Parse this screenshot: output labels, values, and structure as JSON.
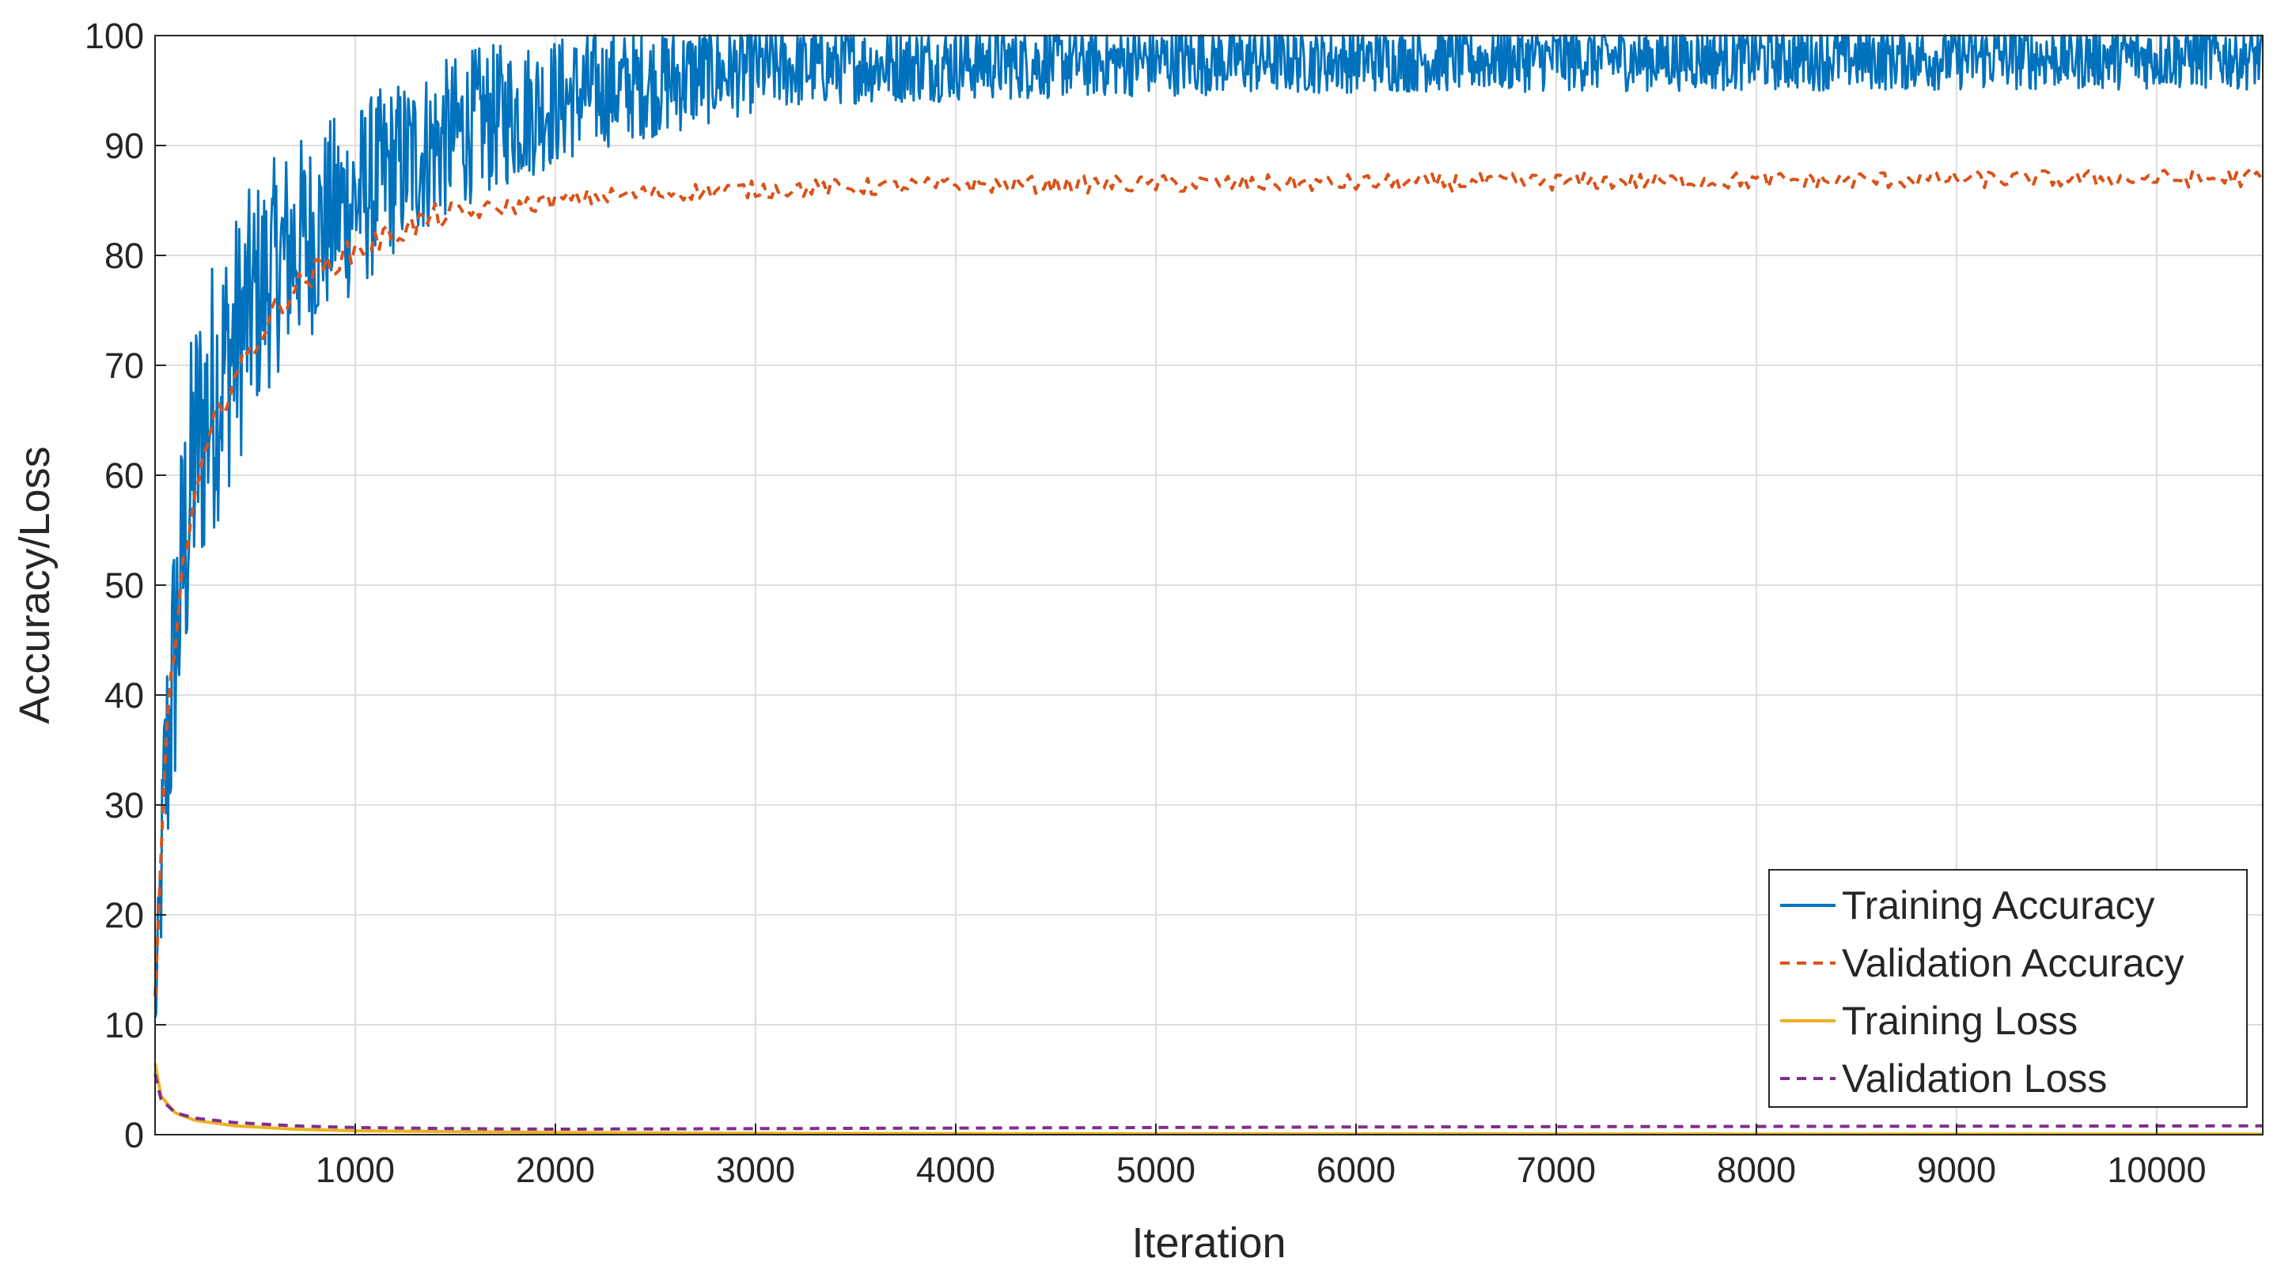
{
  "chart_data": {
    "type": "line",
    "title": "",
    "xlabel": "Iteration",
    "ylabel": "Accuracy/Loss",
    "xlim": [
      0,
      10530
    ],
    "ylim": [
      0,
      100
    ],
    "xticks": [
      1000,
      2000,
      3000,
      4000,
      5000,
      6000,
      7000,
      8000,
      9000,
      10000
    ],
    "yticks": [
      0,
      10,
      20,
      30,
      40,
      50,
      60,
      70,
      80,
      90,
      100
    ],
    "grid": true,
    "legend_position": "bottom-right",
    "series": [
      {
        "name": "Training Accuracy",
        "color": "#0072BD",
        "style": "solid",
        "x": [
          0,
          50,
          100,
          150,
          200,
          300,
          400,
          500,
          600,
          700,
          800,
          900,
          1000,
          1200,
          1400,
          1600,
          1800,
          2000,
          2200,
          2400,
          2600,
          2800,
          3000,
          3500,
          4000,
          5000,
          6000,
          7000,
          8000,
          9000,
          10000,
          10530
        ],
        "values": [
          10,
          32,
          44,
          54,
          62,
          68,
          72,
          76,
          79,
          81,
          82,
          84,
          85,
          88,
          90,
          92,
          93,
          94,
          95,
          95.5,
          96,
          96.5,
          97,
          97.3,
          97.5,
          97.7,
          97.8,
          97.9,
          98,
          98,
          98.1,
          98.1
        ],
        "noise_band": [
          2,
          12,
          14,
          14,
          14,
          13,
          12,
          11,
          10,
          10,
          9,
          9,
          9,
          8,
          7.5,
          7,
          6.5,
          6,
          5.5,
          5,
          5,
          4.5,
          4,
          3.5,
          3.5,
          3.2,
          3,
          3,
          3,
          3,
          3,
          3
        ]
      },
      {
        "name": "Validation Accuracy",
        "color": "#D95319",
        "style": "dashed",
        "x": [
          0,
          30,
          60,
          100,
          150,
          200,
          300,
          400,
          500,
          600,
          700,
          800,
          900,
          1000,
          1200,
          1400,
          1600,
          1800,
          2000,
          2200,
          2500,
          3000,
          3500,
          4000,
          5000,
          6000,
          7000,
          8000,
          9000,
          10000,
          10530
        ],
        "values": [
          12,
          25,
          38,
          45,
          53,
          58,
          65,
          69,
          72,
          75,
          77,
          78.5,
          79.5,
          80.5,
          82,
          83.5,
          84,
          84.5,
          85,
          85.3,
          85.7,
          86,
          86.2,
          86.4,
          86.5,
          86.6,
          86.7,
          86.8,
          86.9,
          87,
          87
        ]
      },
      {
        "name": "Training Loss",
        "color": "#EDB120",
        "style": "solid",
        "x": [
          0,
          30,
          100,
          200,
          400,
          700,
          1000,
          2000,
          3000,
          5000,
          8000,
          10530
        ],
        "values": [
          6.5,
          3.5,
          2,
          1.3,
          0.8,
          0.5,
          0.35,
          0.2,
          0.12,
          0.08,
          0.06,
          0.05
        ]
      },
      {
        "name": "Validation Loss",
        "color": "#7E2F8E",
        "style": "dashed",
        "x": [
          0,
          30,
          100,
          200,
          400,
          700,
          1000,
          1500,
          2000,
          3000,
          4000,
          5000,
          6000,
          8000,
          10530
        ],
        "values": [
          5.5,
          3.2,
          2,
          1.5,
          1.1,
          0.8,
          0.65,
          0.55,
          0.5,
          0.55,
          0.6,
          0.65,
          0.7,
          0.75,
          0.8
        ]
      }
    ]
  }
}
